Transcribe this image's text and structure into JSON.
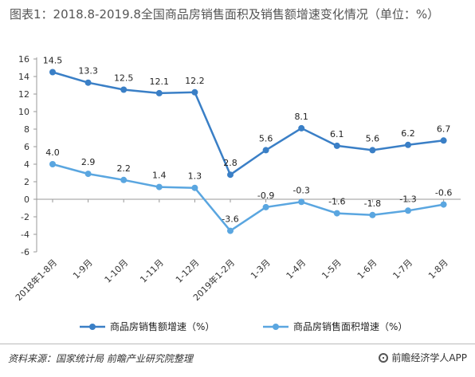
{
  "title": "图表1：2018.8-2019.8全国商品房销售面积及销售额增速变化情况（单位：%）",
  "source": "资料来源：国家统计局 前瞻产业研究院整理",
  "brand": "前瞻经济学人APP",
  "chart_data": {
    "type": "line",
    "categories": [
      "2018年1-8月",
      "1-9月",
      "1-10月",
      "1-11月",
      "1-12月",
      "2019年1-2月",
      "1-3月",
      "1-4月",
      "1-5月",
      "1-6月",
      "1-7月",
      "1-8月"
    ],
    "ylim": [
      -6,
      16
    ],
    "yticks": [
      16,
      14,
      12,
      10,
      8,
      6,
      4,
      2,
      0,
      -2,
      -4,
      -6
    ],
    "grid": false,
    "legend_position": "bottom",
    "series": [
      {
        "name": "商品房销售额增速（%）",
        "color": "#3a7fc6",
        "values": [
          14.5,
          13.3,
          12.5,
          12.1,
          12.2,
          2.8,
          5.6,
          8.1,
          6.1,
          5.6,
          6.2,
          6.7
        ]
      },
      {
        "name": "商品房销售面积增速（%）",
        "color": "#5aa6e0",
        "values": [
          4.0,
          2.9,
          2.2,
          1.4,
          1.3,
          -3.6,
          -0.9,
          -0.3,
          -1.6,
          -1.8,
          -1.3,
          -0.6
        ]
      }
    ]
  }
}
